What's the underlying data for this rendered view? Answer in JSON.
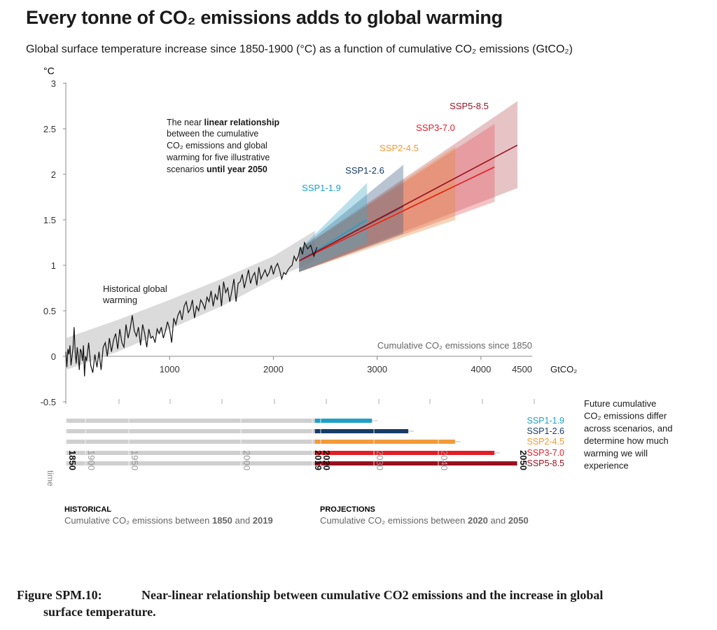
{
  "header": {
    "title": "Every tonne of CO₂ emissions adds to global warming",
    "subtitle": "Global surface temperature increase since 1850-1900 (°C) as a function of cumulative CO₂ emissions (GtCO₂)"
  },
  "chart_data": {
    "type": "line",
    "ylabel": "°C",
    "xlabel": "Cumulative CO₂ emissions since 1850",
    "x_unit": "4500 GtCO₂",
    "xlim": [
      0,
      4500
    ],
    "ylim": [
      -0.5,
      3
    ],
    "x_ticks": [
      "1000",
      "2000",
      "3000",
      "4000"
    ],
    "y_ticks": [
      "-0.5",
      "0",
      "0.5",
      "1",
      "1.5",
      "2",
      "2.5",
      "3"
    ],
    "grid": false,
    "annotations": {
      "linear_note": [
        "The near ",
        "linear relationship",
        "between the cumulative",
        "CO₂ emissions and global",
        "warming for five illustrative",
        "scenarios ",
        "until year 2050"
      ],
      "historical_note": [
        "Historical global",
        "warming"
      ]
    },
    "historical": {
      "name": "Historical global warming",
      "x": [
        0,
        10,
        20,
        30,
        40,
        50,
        60,
        70,
        80,
        90,
        100,
        110,
        120,
        130,
        140,
        150,
        160,
        170,
        180,
        190,
        200,
        220,
        240,
        260,
        280,
        300,
        320,
        340,
        360,
        380,
        400,
        420,
        440,
        460,
        480,
        500,
        520,
        540,
        560,
        580,
        600,
        620,
        640,
        660,
        680,
        700,
        720,
        740,
        760,
        780,
        800,
        820,
        840,
        860,
        880,
        900,
        920,
        940,
        960,
        980,
        1000,
        1020,
        1040,
        1060,
        1080,
        1100,
        1120,
        1140,
        1160,
        1180,
        1200,
        1220,
        1240,
        1260,
        1280,
        1300,
        1320,
        1340,
        1360,
        1380,
        1400,
        1420,
        1440,
        1460,
        1480,
        1500,
        1520,
        1540,
        1560,
        1580,
        1600,
        1620,
        1640,
        1660,
        1680,
        1700,
        1720,
        1740,
        1760,
        1780,
        1800,
        1820,
        1840,
        1860,
        1880,
        1900,
        1920,
        1940,
        1960,
        1980,
        2000,
        2020,
        2040,
        2060,
        2080,
        2100,
        2120,
        2140,
        2160,
        2180,
        2200,
        2220,
        2240,
        2260,
        2280,
        2300,
        2330,
        2360,
        2390,
        2420
      ],
      "y": [
        0.05,
        -0.12,
        0.08,
        0.02,
        0.12,
        -0.1,
        0.0,
        0.1,
        0.32,
        0.05,
        -0.08,
        0.1,
        0.0,
        -0.15,
        0.08,
        0.05,
        -0.05,
        0.12,
        -0.22,
        0.0,
        -0.05,
        0.15,
        -0.1,
        -0.18,
        0.02,
        -0.12,
        0.05,
        -0.15,
        0.1,
        0.15,
        0.0,
        0.2,
        0.05,
        0.18,
        0.25,
        0.08,
        0.3,
        0.15,
        0.1,
        0.35,
        0.2,
        0.3,
        0.45,
        0.28,
        0.22,
        0.32,
        0.12,
        0.35,
        0.25,
        0.1,
        0.3,
        0.2,
        0.22,
        0.15,
        0.3,
        0.25,
        0.32,
        0.2,
        0.28,
        0.38,
        0.3,
        0.15,
        0.42,
        0.35,
        0.45,
        0.5,
        0.4,
        0.55,
        0.6,
        0.48,
        0.52,
        0.62,
        0.42,
        0.55,
        0.5,
        0.62,
        0.58,
        0.52,
        0.65,
        0.6,
        0.72,
        0.55,
        0.68,
        0.62,
        0.78,
        0.55,
        0.82,
        0.7,
        0.75,
        0.6,
        0.72,
        0.85,
        0.6,
        0.8,
        0.82,
        0.9,
        0.75,
        0.85,
        0.95,
        0.8,
        0.88,
        0.92,
        0.78,
        0.98,
        0.85,
        0.9,
        0.95,
        0.88,
        0.92,
        1.0,
        0.9,
        0.98,
        1.02,
        0.95,
        0.85,
        0.92,
        0.9,
        0.95,
        0.98,
        1.0,
        1.1,
        1.05,
        1.1,
        1.2,
        1.12,
        1.25,
        1.18,
        1.22,
        1.1,
        1.2
      ]
    },
    "historical_band": {
      "x": [
        0,
        500,
        1000,
        1500,
        2000,
        2400
      ],
      "lower": [
        -0.15,
        0.05,
        0.3,
        0.55,
        0.85,
        1.05
      ],
      "upper": [
        0.2,
        0.4,
        0.62,
        0.85,
        1.1,
        1.38
      ]
    },
    "projections": {
      "start_x": 2250,
      "start_y": 1.05,
      "series": [
        {
          "name": "SSP1-1.9",
          "color": "#1ea0c6",
          "band_color": "#3fa9c9",
          "end_x": 2900,
          "end_y": 1.5,
          "band_end": [
            1.25,
            1.9
          ]
        },
        {
          "name": "SSP1-2.6",
          "color": "#173c66",
          "band_color": "#3a5a80",
          "end_x": 3250,
          "end_y": 1.65,
          "band_end": [
            1.35,
            2.1
          ]
        },
        {
          "name": "SSP2-4.5",
          "color": "#f29a38",
          "band_color": "#e8893a",
          "end_x": 3750,
          "end_y": 1.88,
          "band_end": [
            1.5,
            2.3
          ]
        },
        {
          "name": "SSP3-7.0",
          "color": "#e31d25",
          "band_color": "#e8555c",
          "end_x": 4130,
          "end_y": 2.08,
          "band_end": [
            1.7,
            2.55
          ]
        },
        {
          "name": "SSP5-8.5",
          "color": "#99101e",
          "band_color": "#b8585f",
          "end_x": 4350,
          "end_y": 2.32,
          "band_end": [
            1.85,
            2.8
          ]
        }
      ]
    },
    "timeline": {
      "year_labels": [
        "1850",
        "1900",
        "1950",
        "2000",
        "2019",
        "2020",
        "2030",
        "2040",
        "2050"
      ],
      "bold_years": [
        "1850",
        "2019",
        "2020",
        "2050"
      ],
      "time_label": "time",
      "bars": [
        {
          "name": "SSP1-1.9",
          "color": "#1ea0c6",
          "end_x": 2950
        },
        {
          "name": "SSP1-2.6",
          "color": "#173c66",
          "end_x": 3300
        },
        {
          "name": "SSP2-4.5",
          "color": "#f29a38",
          "end_x": 3750
        },
        {
          "name": "SSP3-7.0",
          "color": "#e31d25",
          "end_x": 4130
        },
        {
          "name": "SSP5-8.5",
          "color": "#99101e",
          "end_x": 4350
        }
      ],
      "historical_label": "HISTORICAL",
      "historical_desc": [
        "Cumulative CO₂ emissions between ",
        "1850",
        " and ",
        "2019"
      ],
      "projections_label": "PROJECTIONS",
      "projections_desc": [
        "Cumulative CO₂ emissions between ",
        "2020",
        " and ",
        "2050"
      ],
      "side_note": [
        "Future cumulative",
        "CO₂ emissions differ",
        "across scenarios, and",
        "determine how much",
        "warming we will",
        "experience"
      ]
    }
  },
  "caption": {
    "label": "Figure SPM.10:",
    "text_line1": "Near-linear relationship between cumulative CO2 emissions and the increase in global",
    "text_line2": "surface temperature."
  }
}
